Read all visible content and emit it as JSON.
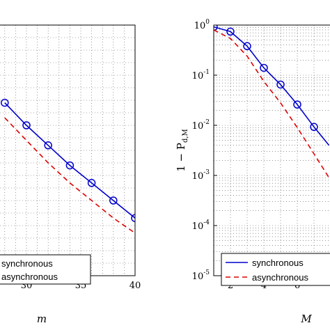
{
  "colors": {
    "synchronous": "#0000cc",
    "asynchronous": "#dd0000",
    "grid": "#555555"
  },
  "chart_data": [
    {
      "type": "line",
      "title": "",
      "xlabel": "m",
      "ylabel": "",
      "xlim": [
        25,
        40
      ],
      "xticks": [
        "30",
        "35",
        "40"
      ],
      "xtick_values": [
        30,
        35,
        40
      ],
      "ylim": [
        0,
        1
      ],
      "grid": true,
      "x": [
        28,
        30,
        32,
        34,
        36,
        38,
        40
      ],
      "series": [
        {
          "name": "synchronous",
          "style": "solid-circle",
          "values": [
            0.69,
            0.6,
            0.52,
            0.44,
            0.37,
            0.3,
            0.23
          ]
        },
        {
          "name": "asynchronous",
          "style": "dashed",
          "values": [
            0.63,
            0.54,
            0.45,
            0.37,
            0.3,
            0.23,
            0.17
          ]
        }
      ],
      "legend": {
        "position": "bottom-left",
        "entries": [
          "synchronous",
          "asynchronous"
        ]
      }
    },
    {
      "type": "line",
      "title": "",
      "xlabel": "M",
      "ylabel": "1 − P",
      "ylabel_sub": "d,M",
      "xlim": [
        1,
        8
      ],
      "xticks": [
        "2",
        "4",
        "6"
      ],
      "xtick_values": [
        2,
        4,
        6
      ],
      "yscale": "log",
      "ylim": [
        1e-05,
        1
      ],
      "yticks": [
        {
          "base": "10",
          "exp": "0",
          "value": 1
        },
        {
          "base": "10",
          "exp": "-1",
          "value": 0.1
        },
        {
          "base": "10",
          "exp": "-2",
          "value": 0.01
        },
        {
          "base": "10",
          "exp": "-3",
          "value": 0.001
        },
        {
          "base": "10",
          "exp": "-4",
          "value": 0.0001
        },
        {
          "base": "10",
          "exp": "-5",
          "value": 1e-05
        }
      ],
      "grid": true,
      "series": [
        {
          "name": "synchronous",
          "style": "solid-circle",
          "x": [
            1,
            2,
            3,
            4,
            5,
            6,
            7,
            7.9
          ],
          "values": [
            0.92,
            0.74,
            0.38,
            0.14,
            0.065,
            0.026,
            0.0093,
            0.004
          ],
          "markers": [
            1,
            2,
            3,
            4,
            5,
            6,
            7
          ]
        },
        {
          "name": "asynchronous",
          "style": "dashed",
          "x": [
            1,
            2,
            3,
            4,
            5,
            6,
            7,
            7.9
          ],
          "values": [
            0.8,
            0.54,
            0.24,
            0.075,
            0.028,
            0.009,
            0.0027,
            0.0009
          ]
        }
      ],
      "legend": {
        "position": "bottom-right",
        "entries": [
          "synchronous",
          "asynchronous"
        ]
      }
    }
  ]
}
